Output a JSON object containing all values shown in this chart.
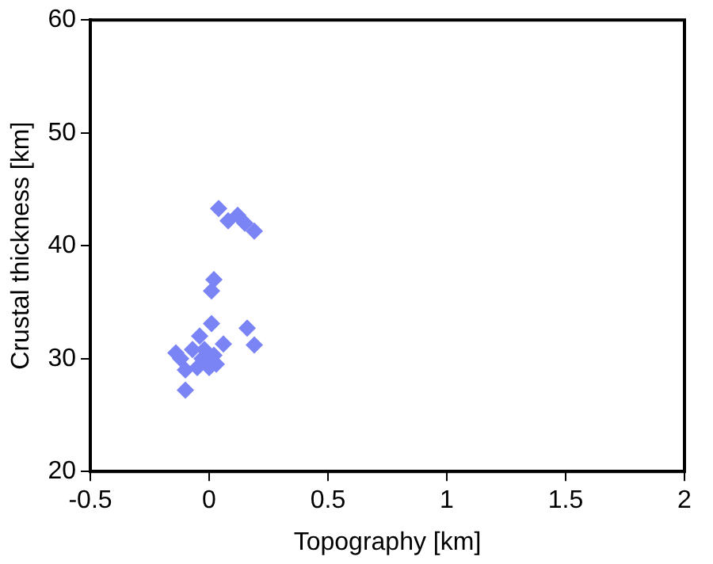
{
  "chart_data": {
    "type": "scatter",
    "xlabel": "Topography [km]",
    "ylabel": "Crustal thickness [km]",
    "marker": "diamond",
    "grid": false,
    "legend": false,
    "series": [
      {
        "color": "#7b84f5",
        "x": [
          0.04,
          0.08,
          0.12,
          0.15,
          0.19,
          0.02,
          0.01,
          0.01,
          0.16,
          0.19,
          0.06,
          -0.1,
          -0.14,
          -0.11,
          -0.07,
          -0.04,
          -0.02,
          -0.05,
          0,
          0.03,
          -0.1,
          -0.03,
          0.02,
          -0.12
        ],
        "values": [
          43.3,
          42.2,
          42.7,
          42,
          41.3,
          37,
          36,
          33.1,
          32.7,
          31.2,
          31.3,
          27.2,
          30.5,
          null,
          30.8,
          32,
          30.8,
          29.2,
          29.2,
          29.5,
          29,
          30,
          30.3,
          30
        ]
      }
    ],
    "xlim": [
      -0.5,
      2
    ],
    "xticks": [
      -0.5,
      0,
      0.5,
      1,
      1.5,
      2
    ],
    "ylim": [
      20,
      60
    ],
    "yticks": [
      20,
      30,
      40,
      50,
      60
    ]
  }
}
